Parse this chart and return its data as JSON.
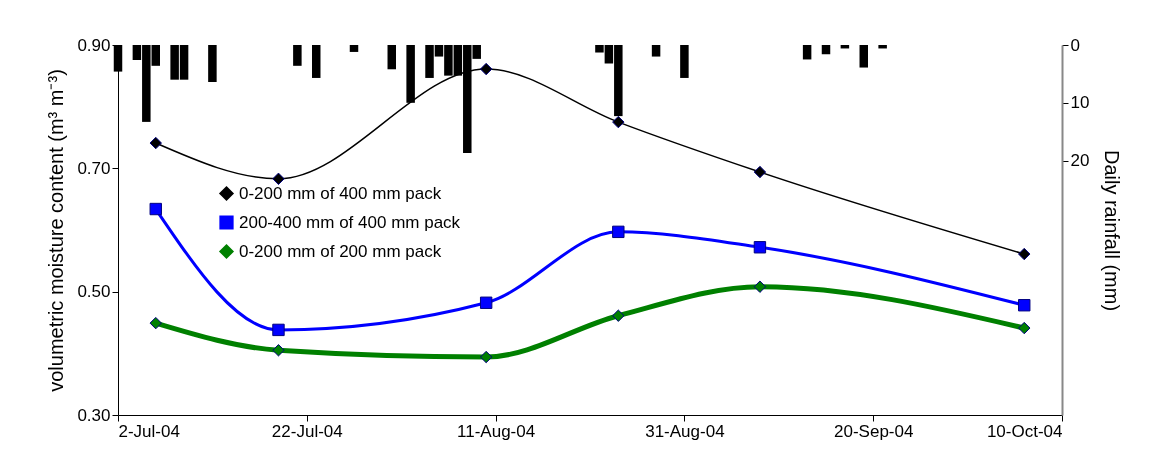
{
  "chart_data": {
    "type": "line",
    "ylabel": "volumetric moisture content (m³ m⁻³)",
    "y2label": "Daily rainfall (mm)",
    "xlim": [
      "2004-07-02",
      "2004-10-10"
    ],
    "xticks": [
      {
        "value": "2004-07-02",
        "label": "2-Jul-04"
      },
      {
        "value": "2004-07-22",
        "label": "22-Jul-04"
      },
      {
        "value": "2004-08-11",
        "label": "11-Aug-04"
      },
      {
        "value": "2004-08-31",
        "label": "31-Aug-04"
      },
      {
        "value": "2004-09-20",
        "label": "20-Sep-04"
      },
      {
        "value": "2004-10-10",
        "label": "10-Oct-04"
      }
    ],
    "ylim": [
      0.3,
      0.9
    ],
    "yticks": [
      {
        "value": 0.3,
        "label": "0.30"
      },
      {
        "value": 0.5,
        "label": "0.50"
      },
      {
        "value": 0.7,
        "label": "0.70"
      },
      {
        "value": 0.9,
        "label": "0.90"
      }
    ],
    "y2lim": [
      64,
      0
    ],
    "y2ticks": [
      0,
      10,
      20
    ],
    "legend": "left",
    "line_style": "solid",
    "series": [
      {
        "name": "0-200 mm of 400 mm pack",
        "color": "#000000",
        "marker": "diamond",
        "x": [
          "2004-07-06",
          "2004-07-19",
          "2004-08-10",
          "2004-08-24",
          "2004-09-08",
          "2004-10-06"
        ],
        "values": [
          0.741,
          0.683,
          0.861,
          0.775,
          0.694,
          0.561
        ]
      },
      {
        "name": "200-400 mm of 400 mm pack",
        "color": "#0000ff",
        "marker": "square",
        "x": [
          "2004-07-06",
          "2004-07-19",
          "2004-08-10",
          "2004-08-24",
          "2004-09-08",
          "2004-10-06"
        ],
        "values": [
          0.634,
          0.438,
          0.482,
          0.597,
          0.572,
          0.478
        ]
      },
      {
        "name": "0-200 mm of 200 mm pack",
        "color": "#008000",
        "marker": "diamond",
        "x": [
          "2004-07-06",
          "2004-07-19",
          "2004-08-10",
          "2004-08-24",
          "2004-09-08",
          "2004-10-06"
        ],
        "values": [
          0.449,
          0.405,
          0.394,
          0.461,
          0.508,
          0.441
        ]
      },
      {
        "type": "bar",
        "axis": "y2",
        "color": "#000000",
        "x": [
          "2004-07-02",
          "2004-07-04",
          "2004-07-05",
          "2004-07-06",
          "2004-07-08",
          "2004-07-09",
          "2004-07-12",
          "2004-07-21",
          "2004-07-23",
          "2004-07-27",
          "2004-07-31",
          "2004-08-02",
          "2004-08-04",
          "2004-08-05",
          "2004-08-06",
          "2004-08-07",
          "2004-08-08",
          "2004-08-09",
          "2004-08-22",
          "2004-08-23",
          "2004-08-24",
          "2004-08-28",
          "2004-08-31",
          "2004-09-13",
          "2004-09-15",
          "2004-09-17",
          "2004-09-19",
          "2004-09-21"
        ],
        "values": [
          4.6,
          2.6,
          13.3,
          3.6,
          6.0,
          6.0,
          6.4,
          3.6,
          5.7,
          1.2,
          4.2,
          10.0,
          5.7,
          2.0,
          5.3,
          5.3,
          18.7,
          2.4,
          1.3,
          3.2,
          12.3,
          2.0,
          5.7,
          2.5,
          1.6,
          0.6,
          3.9,
          0.6
        ]
      }
    ]
  }
}
